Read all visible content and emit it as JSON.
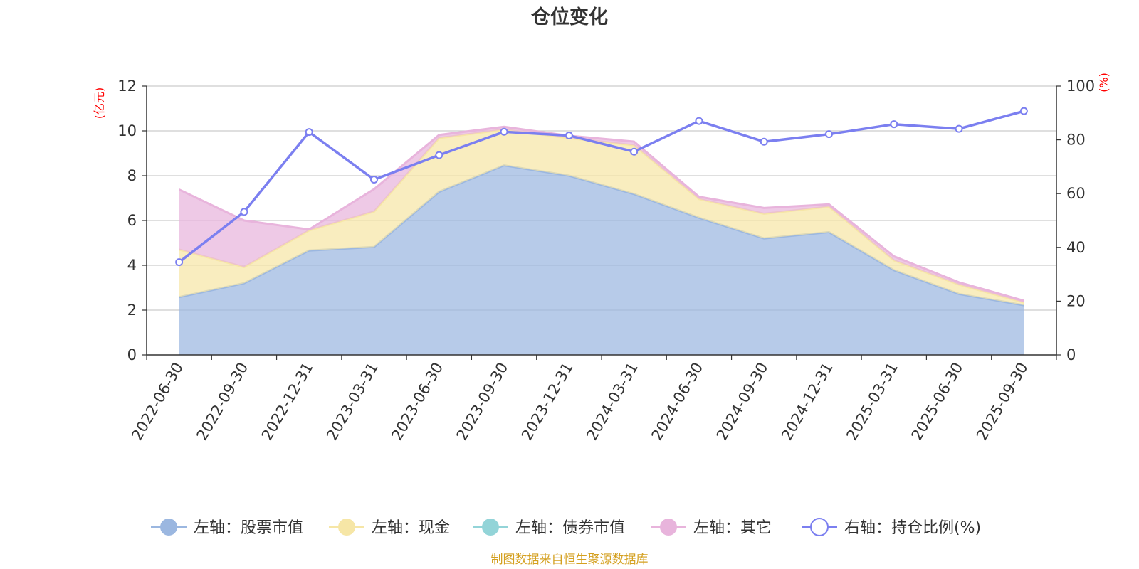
{
  "chart_data": {
    "type": "area",
    "title": "仓位变化",
    "left_axis_unit": "(亿元)",
    "right_axis_unit": "(%)",
    "categories": [
      "2022-06-30",
      "2022-09-30",
      "2022-12-31",
      "2023-03-31",
      "2023-06-30",
      "2023-09-30",
      "2023-12-31",
      "2024-03-31",
      "2024-06-30",
      "2024-09-30",
      "2024-12-31",
      "2025-03-31",
      "2025-06-30",
      "2025-09-30"
    ],
    "left_ylim": [
      0,
      12
    ],
    "left_ticks": [
      0,
      2,
      4,
      6,
      8,
      10,
      12
    ],
    "right_ylim": [
      0,
      100
    ],
    "right_ticks": [
      0,
      20,
      40,
      60,
      80,
      100
    ],
    "stacked": true,
    "series": [
      {
        "name": "左轴：股票市值",
        "axis": "left",
        "kind": "area",
        "color": "#9bb7e0",
        "values": [
          2.58,
          3.2,
          4.66,
          4.82,
          7.28,
          8.46,
          8.0,
          7.18,
          6.12,
          5.2,
          5.48,
          3.78,
          2.72,
          2.22
        ]
      },
      {
        "name": "左轴：现金",
        "axis": "left",
        "kind": "area",
        "color": "#f6e6a6",
        "values": [
          2.12,
          0.72,
          0.9,
          1.58,
          2.4,
          1.6,
          1.68,
          2.18,
          0.84,
          1.1,
          1.14,
          0.44,
          0.42,
          0.12
        ]
      },
      {
        "name": "左轴：债券市值",
        "axis": "left",
        "kind": "area",
        "color": "#93d4d8",
        "values": [
          0,
          0,
          0,
          0,
          0,
          0,
          0,
          0,
          0,
          0,
          0,
          0,
          0,
          0
        ]
      },
      {
        "name": "左轴：其它",
        "axis": "left",
        "kind": "area",
        "color": "#e8b4dc",
        "values": [
          2.68,
          2.08,
          0.04,
          1.0,
          0.14,
          0.12,
          0.1,
          0.16,
          0.1,
          0.26,
          0.1,
          0.18,
          0.1,
          0.08
        ]
      },
      {
        "name": "右轴：持仓比例(%)",
        "axis": "right",
        "kind": "line",
        "color": "#7b7ff0",
        "values": [
          34.5,
          53.2,
          82.9,
          65.2,
          74.3,
          83.0,
          81.6,
          75.6,
          87.0,
          79.3,
          82.1,
          85.8,
          84.1,
          90.7
        ]
      }
    ],
    "legend_position": "bottom",
    "grid": true
  },
  "source_note": "制图数据来自恒生聚源数据库"
}
